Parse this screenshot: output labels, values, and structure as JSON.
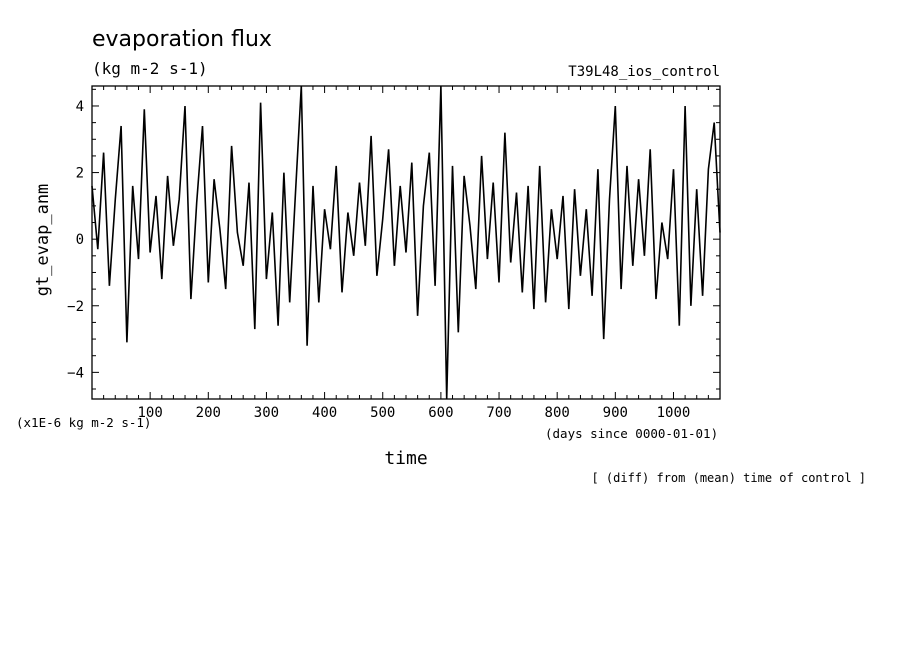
{
  "chart_data": {
    "type": "line",
    "title": "evaporation flux",
    "units": "(kg m-2 s-1)",
    "experiment": "T39L48_ios_control",
    "xlabel": "time",
    "xunits": "(days since 0000-01-01)",
    "ylabel": "gt_evap_anm",
    "yscale_note": "(x1E-6 kg m-2 s-1)",
    "footer": "[ (diff) from (mean) time of control ]",
    "xlim": [
      0,
      1080
    ],
    "ylim": [
      -4.8,
      4.6
    ],
    "xticks": [
      100,
      200,
      300,
      400,
      500,
      600,
      700,
      800,
      900,
      1000
    ],
    "yticks": [
      -4,
      -2,
      0,
      2,
      4
    ],
    "grid": false,
    "legend": "none",
    "line_color": "#000000",
    "series": [
      {
        "x": [
          0,
          10,
          20,
          30,
          40,
          50,
          60,
          70,
          80,
          90,
          100,
          110,
          120,
          130,
          140,
          150,
          160,
          170,
          180,
          190,
          200,
          210,
          220,
          230,
          240,
          250,
          260,
          270,
          280,
          290,
          300,
          310,
          320,
          330,
          340,
          350,
          360,
          370,
          380,
          390,
          400,
          410,
          420,
          430,
          440,
          450,
          460,
          470,
          480,
          490,
          500,
          510,
          520,
          530,
          540,
          550,
          560,
          570,
          580,
          590,
          600,
          610,
          620,
          630,
          640,
          650,
          660,
          670,
          680,
          690,
          700,
          710,
          720,
          730,
          740,
          750,
          760,
          770,
          780,
          790,
          800,
          810,
          820,
          830,
          840,
          850,
          860,
          870,
          880,
          890,
          900,
          910,
          920,
          930,
          940,
          950,
          960,
          970,
          980,
          990,
          1000,
          1010,
          1020,
          1030,
          1040,
          1050,
          1060,
          1070,
          1080
        ],
        "values": [
          1.6,
          -0.3,
          2.6,
          -1.4,
          1.2,
          3.4,
          -3.1,
          1.6,
          -0.6,
          3.9,
          -0.4,
          1.3,
          -1.2,
          1.9,
          -0.2,
          1.2,
          4.0,
          -1.8,
          1.1,
          3.4,
          -1.3,
          1.8,
          0.3,
          -1.5,
          2.8,
          0.2,
          -0.8,
          1.7,
          -2.7,
          4.1,
          -1.2,
          0.8,
          -2.6,
          2.0,
          -1.9,
          1.4,
          4.7,
          -3.2,
          1.6,
          -1.9,
          0.9,
          -0.3,
          2.2,
          -1.6,
          0.8,
          -0.5,
          1.7,
          -0.2,
          3.1,
          -1.1,
          0.6,
          2.7,
          -0.8,
          1.6,
          -0.4,
          2.3,
          -2.3,
          1.0,
          2.6,
          -1.4,
          4.6,
          -4.8,
          2.2,
          -2.8,
          1.9,
          0.4,
          -1.5,
          2.5,
          -0.6,
          1.7,
          -1.3,
          3.2,
          -0.7,
          1.4,
          -1.6,
          1.6,
          -2.1,
          2.2,
          -1.9,
          0.9,
          -0.6,
          1.3,
          -2.1,
          1.5,
          -1.1,
          0.9,
          -1.7,
          2.1,
          -3.0,
          1.2,
          4.0,
          -1.5,
          2.2,
          -0.8,
          1.8,
          -0.5,
          2.7,
          -1.8,
          0.5,
          -0.6,
          2.1,
          -2.6,
          4.0,
          -2.0,
          1.5,
          -1.7,
          2.1,
          3.5,
          0.2
        ]
      }
    ]
  }
}
